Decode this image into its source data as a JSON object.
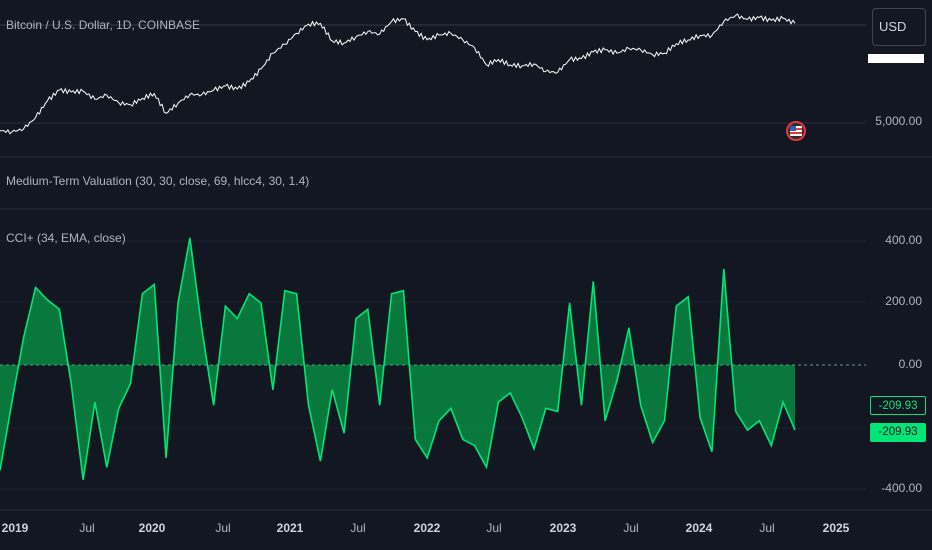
{
  "price_pane": {
    "title": "Bitcoin / U.S. Dollar, 1D, COINBASE",
    "axis_label": "5,000.00",
    "currency_button": "USD",
    "line_color": "#ffffff"
  },
  "valuation_pane": {
    "title": "Medium-Term Valuation (30, 30, close, 69, hlcc4, 30, 1.4)"
  },
  "cci_pane": {
    "title": "CCI+ (34, EMA, close)",
    "axis_labels": [
      "400.00",
      "200.00",
      "0.00",
      "-400.00"
    ],
    "last_value_tags": [
      "-209.93",
      "-209.93"
    ],
    "line_color": "#00e676",
    "fill_color": "#00c853"
  },
  "time_axis": {
    "labels": [
      "2019",
      "Jul",
      "2020",
      "Jul",
      "2021",
      "Jul",
      "2022",
      "Jul",
      "2023",
      "Jul",
      "2024",
      "Jul",
      "2025"
    ]
  },
  "flag_badge": {
    "icon": "us-flag-icon"
  },
  "chart_data": [
    {
      "type": "line",
      "title": "Bitcoin / U.S. Dollar, 1D, COINBASE",
      "yscale": "log",
      "x": [
        "2019-01",
        "2019-02",
        "2019-03",
        "2019-04",
        "2019-05",
        "2019-06",
        "2019-07",
        "2019-08",
        "2019-09",
        "2019-10",
        "2019-11",
        "2019-12",
        "2020-01",
        "2020-02",
        "2020-03",
        "2020-04",
        "2020-05",
        "2020-06",
        "2020-07",
        "2020-08",
        "2020-09",
        "2020-10",
        "2020-11",
        "2020-12",
        "2021-01",
        "2021-02",
        "2021-03",
        "2021-04",
        "2021-05",
        "2021-06",
        "2021-07",
        "2021-08",
        "2021-09",
        "2021-10",
        "2021-11",
        "2021-12",
        "2022-01",
        "2022-02",
        "2022-03",
        "2022-04",
        "2022-05",
        "2022-06",
        "2022-07",
        "2022-08",
        "2022-09",
        "2022-10",
        "2022-11",
        "2022-12",
        "2023-01",
        "2023-02",
        "2023-03",
        "2023-04",
        "2023-05",
        "2023-06",
        "2023-07",
        "2023-08",
        "2023-09",
        "2023-10",
        "2023-11",
        "2023-12",
        "2024-01",
        "2024-02",
        "2024-03",
        "2024-04",
        "2024-05",
        "2024-06",
        "2024-07",
        "2024-08"
      ],
      "values": [
        3700,
        3600,
        3900,
        5200,
        8000,
        10500,
        10000,
        10200,
        8300,
        9200,
        7600,
        7200,
        8500,
        9600,
        5800,
        7500,
        9400,
        9300,
        10500,
        11700,
        10800,
        13000,
        18000,
        27000,
        34000,
        45000,
        57000,
        58000,
        37000,
        35000,
        41000,
        47000,
        44000,
        61000,
        65000,
        47000,
        38000,
        43000,
        45000,
        38000,
        31000,
        20000,
        23000,
        20000,
        19500,
        20500,
        17000,
        16500,
        23000,
        23500,
        28000,
        29500,
        27000,
        30500,
        29500,
        26000,
        27000,
        34500,
        38000,
        42500,
        42500,
        61000,
        71000,
        64000,
        67500,
        62500,
        66000,
        58000
      ],
      "axis_tick_labels": [
        "5,000.00"
      ]
    },
    {
      "type": "area",
      "title": "CCI+ (34, EMA, close)",
      "x": [
        "2019-01",
        "2019-02",
        "2019-03",
        "2019-04",
        "2019-05",
        "2019-06",
        "2019-07",
        "2019-08",
        "2019-09",
        "2019-10",
        "2019-11",
        "2019-12",
        "2020-01",
        "2020-02",
        "2020-03",
        "2020-04",
        "2020-05",
        "2020-06",
        "2020-07",
        "2020-08",
        "2020-09",
        "2020-10",
        "2020-11",
        "2020-12",
        "2021-01",
        "2021-02",
        "2021-03",
        "2021-04",
        "2021-05",
        "2021-06",
        "2021-07",
        "2021-08",
        "2021-09",
        "2021-10",
        "2021-11",
        "2021-12",
        "2022-01",
        "2022-02",
        "2022-03",
        "2022-04",
        "2022-05",
        "2022-06",
        "2022-07",
        "2022-08",
        "2022-09",
        "2022-10",
        "2022-11",
        "2022-12",
        "2023-01",
        "2023-02",
        "2023-03",
        "2023-04",
        "2023-05",
        "2023-06",
        "2023-07",
        "2023-08",
        "2023-09",
        "2023-10",
        "2023-11",
        "2023-12",
        "2024-01",
        "2024-02",
        "2024-03",
        "2024-04",
        "2024-05",
        "2024-06",
        "2024-07",
        "2024-08"
      ],
      "values": [
        -340,
        -120,
        90,
        250,
        210,
        180,
        -60,
        -370,
        -120,
        -330,
        -140,
        -60,
        230,
        260,
        -300,
        200,
        410,
        120,
        -130,
        190,
        150,
        230,
        200,
        -80,
        240,
        230,
        -130,
        -310,
        -80,
        -220,
        150,
        180,
        -130,
        230,
        240,
        -240,
        -300,
        -180,
        -140,
        -240,
        -260,
        -330,
        -120,
        -90,
        -170,
        -270,
        -140,
        -150,
        200,
        -130,
        270,
        -180,
        -50,
        120,
        -130,
        -250,
        -180,
        190,
        220,
        -170,
        -280,
        310,
        -150,
        -210,
        -180,
        -260,
        -120,
        -210
      ],
      "ylim": [
        -420,
        420
      ],
      "zero_line": 0,
      "axis_tick_labels": [
        "400.00",
        "200.00",
        "0.00",
        "-400.00"
      ],
      "last_value": -209.93
    }
  ]
}
